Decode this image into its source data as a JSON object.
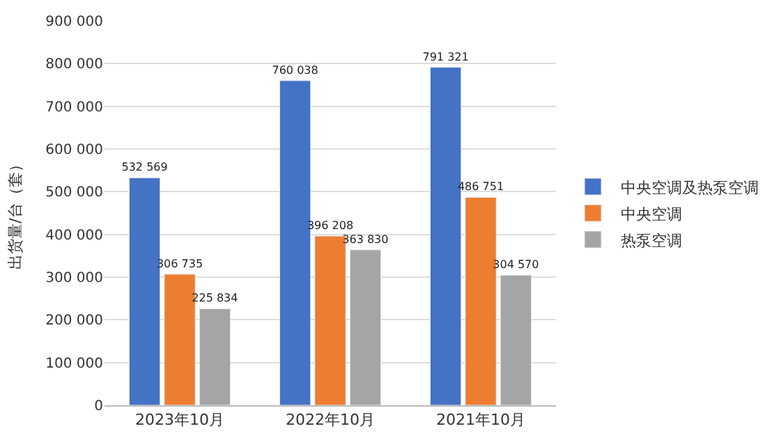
{
  "chart_data": {
    "type": "bar",
    "ylabel": "出货量/台（套）",
    "categories": [
      "2023年10月",
      "2022年10月",
      "2021年10月"
    ],
    "series": [
      {
        "name": "中央空调及热泵空调",
        "color": "#4472c4",
        "values": [
          532569,
          760038,
          791321
        ],
        "value_labels": [
          "532 569",
          "760 038",
          "791 321"
        ]
      },
      {
        "name": "中央空调",
        "color": "#ed7d31",
        "values": [
          306735,
          396208,
          486751
        ],
        "value_labels": [
          "306 735",
          "396 208",
          "486 751"
        ]
      },
      {
        "name": "热泵空调",
        "color": "#a5a5a5",
        "values": [
          225834,
          363830,
          304570
        ],
        "value_labels": [
          "225 834",
          "363 830",
          "304 570"
        ]
      }
    ],
    "ylim": [
      0,
      900000
    ],
    "yticks": [
      {
        "value": 0,
        "label": "0"
      },
      {
        "value": 100000,
        "label": "100 000"
      },
      {
        "value": 200000,
        "label": "200 000"
      },
      {
        "value": 300000,
        "label": "300 000"
      },
      {
        "value": 400000,
        "label": "400 000"
      },
      {
        "value": 500000,
        "label": "500 000"
      },
      {
        "value": 600000,
        "label": "600 000"
      },
      {
        "value": 700000,
        "label": "700 000"
      },
      {
        "value": 800000,
        "label": "800 000"
      },
      {
        "value": 900000,
        "label": "900 000"
      }
    ],
    "grid": "y",
    "legend": "right"
  }
}
